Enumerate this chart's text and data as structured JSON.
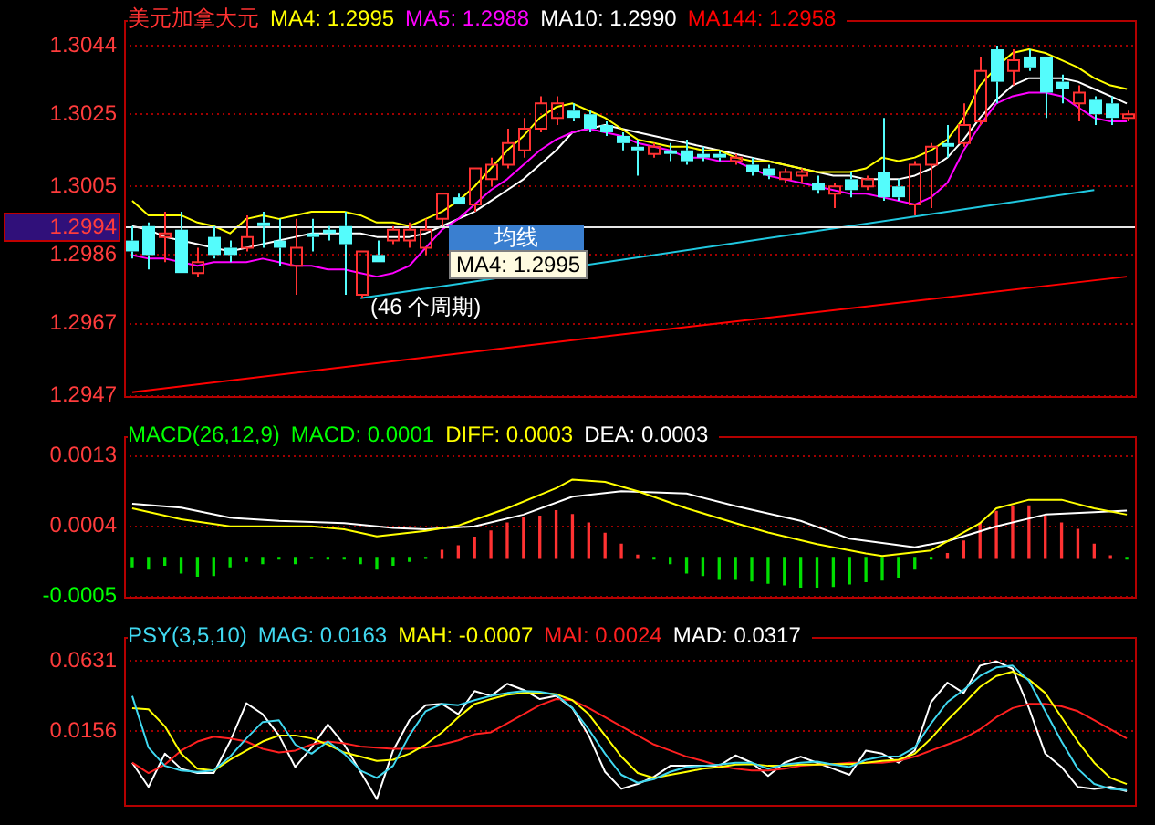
{
  "chart_data": [
    {
      "type": "candlestick",
      "title": "美元加拿大元",
      "categories": [
        null,
        null,
        null,
        null,
        null,
        null,
        null,
        null,
        null,
        null,
        null,
        null,
        null,
        null,
        null,
        null,
        null,
        null,
        null,
        null,
        null,
        null,
        null,
        null,
        null,
        null,
        null,
        null,
        null,
        null,
        null,
        null,
        null,
        null,
        null,
        null,
        null,
        null,
        null,
        null,
        null,
        null,
        null,
        null,
        null,
        null,
        null,
        null,
        null,
        null,
        null,
        null,
        null,
        null,
        null,
        null,
        null,
        null,
        null,
        null,
        null,
        null
      ],
      "ohlc": [
        [
          1.299,
          1.2994,
          1.2985,
          1.2987
        ],
        [
          1.2994,
          1.2995,
          1.2982,
          1.2986
        ],
        [
          1.2991,
          1.2998,
          1.2984,
          1.2992
        ],
        [
          1.2993,
          1.2998,
          1.2981,
          1.2981
        ],
        [
          1.2981,
          1.2988,
          1.298,
          1.2984
        ],
        [
          1.2991,
          1.2994,
          1.2985,
          1.2986
        ],
        [
          1.2988,
          1.299,
          1.2984,
          1.2986
        ],
        [
          1.2988,
          1.2997,
          1.2987,
          1.2991
        ],
        [
          1.2995,
          1.2998,
          1.2988,
          1.2994
        ],
        [
          1.299,
          1.2996,
          1.2983,
          1.2988
        ],
        [
          1.2983,
          1.2996,
          1.2975,
          1.2988
        ],
        [
          1.2992,
          1.2996,
          1.2987,
          1.2991
        ],
        [
          1.2993,
          1.2994,
          1.299,
          1.2992
        ],
        [
          1.2994,
          1.2998,
          1.2975,
          1.2989
        ],
        [
          1.2975,
          1.2987,
          1.2974,
          1.2987
        ],
        [
          1.2986,
          1.299,
          1.2984,
          1.2984
        ],
        [
          1.299,
          1.2994,
          1.2989,
          1.2993
        ],
        [
          1.299,
          1.2995,
          1.2988,
          1.2993
        ],
        [
          1.2988,
          1.2996,
          1.2986,
          1.2993
        ],
        [
          1.2996,
          1.3003,
          1.2994,
          1.3003
        ],
        [
          1.3002,
          1.3003,
          1.3,
          1.3
        ],
        [
          1.3,
          1.301,
          1.2998,
          1.301
        ],
        [
          1.3007,
          1.3013,
          1.3005,
          1.3011
        ],
        [
          1.3011,
          1.3021,
          1.301,
          1.3017
        ],
        [
          1.3015,
          1.3024,
          1.3013,
          1.3021
        ],
        [
          1.3021,
          1.303,
          1.302,
          1.3028
        ],
        [
          1.3024,
          1.303,
          1.3022,
          1.3028
        ],
        [
          1.3026,
          1.3028,
          1.3023,
          1.3024
        ],
        [
          1.3025,
          1.3026,
          1.302,
          1.3021
        ],
        [
          1.3022,
          1.3023,
          1.3019,
          1.302
        ],
        [
          1.3019,
          1.302,
          1.3015,
          1.3017
        ],
        [
          1.3016,
          1.3018,
          1.3008,
          1.3015
        ],
        [
          1.3014,
          1.3017,
          1.3013,
          1.3016
        ],
        [
          1.3015,
          1.3017,
          1.3012,
          1.3014
        ],
        [
          1.3015,
          1.3018,
          1.3011,
          1.3012
        ],
        [
          1.3014,
          1.3016,
          1.3012,
          1.3013
        ],
        [
          1.3014,
          1.3015,
          1.3012,
          1.3013
        ],
        [
          1.3012,
          1.3014,
          1.3011,
          1.3013
        ],
        [
          1.3011,
          1.3013,
          1.3008,
          1.3009
        ],
        [
          1.301,
          1.3011,
          1.3007,
          1.3008
        ],
        [
          1.3007,
          1.301,
          1.3006,
          1.3009
        ],
        [
          1.3008,
          1.301,
          1.3006,
          1.3009
        ],
        [
          1.3006,
          1.3008,
          1.3003,
          1.3004
        ],
        [
          1.3003,
          1.3006,
          1.2999,
          1.3005
        ],
        [
          1.3007,
          1.3009,
          1.3002,
          1.3004
        ],
        [
          1.3005,
          1.3008,
          1.3004,
          1.3007
        ],
        [
          1.3009,
          1.3024,
          1.3001,
          1.3002
        ],
        [
          1.3005,
          1.3007,
          1.3001,
          1.3002
        ],
        [
          1.3,
          1.3012,
          1.2997,
          1.3011
        ],
        [
          1.3011,
          1.3017,
          1.2999,
          1.3016
        ],
        [
          1.3017,
          1.3022,
          1.3013,
          1.3016
        ],
        [
          1.3017,
          1.3028,
          1.3016,
          1.3022
        ],
        [
          1.3023,
          1.3041,
          1.3022,
          1.3037
        ],
        [
          1.3043,
          1.3044,
          1.3028,
          1.3034
        ],
        [
          1.3037,
          1.3043,
          1.3033,
          1.304
        ],
        [
          1.3041,
          1.3043,
          1.3037,
          1.3038
        ],
        [
          1.3041,
          1.3041,
          1.3024,
          1.3031
        ],
        [
          1.3034,
          1.3036,
          1.3028,
          1.3032
        ],
        [
          1.3028,
          1.3033,
          1.3023,
          1.3031
        ],
        [
          1.3029,
          1.303,
          1.3022,
          1.3025
        ],
        [
          1.3028,
          1.303,
          1.3022,
          1.3024
        ],
        [
          1.3024,
          1.3026,
          1.3023,
          1.3025
        ]
      ],
      "colors": [
        "#54fcfc",
        "#54fcfc",
        "#ff3232",
        "#54fcfc",
        "#ff3232",
        "#54fcfc",
        "#54fcfc",
        "#ff3232",
        "#54fcfc",
        "#54fcfc",
        "#ff3232",
        "#54fcfc",
        "#54fcfc",
        "#54fcfc",
        "#ff3232",
        "#54fcfc",
        "#ff3232",
        "#ff3232",
        "#ff3232",
        "#ff3232",
        "#54fcfc",
        "#ff3232",
        "#ff3232",
        "#ff3232",
        "#ff3232",
        "#ff3232",
        "#ff3232",
        "#54fcfc",
        "#54fcfc",
        "#54fcfc",
        "#54fcfc",
        "#54fcfc",
        "#ff3232",
        "#54fcfc",
        "#54fcfc",
        "#54fcfc",
        "#54fcfc",
        "#ff3232",
        "#54fcfc",
        "#54fcfc",
        "#ff3232",
        "#ff3232",
        "#54fcfc",
        "#ff3232",
        "#54fcfc",
        "#ff3232",
        "#54fcfc",
        "#54fcfc",
        "#ff3232",
        "#ff3232",
        "#54fcfc",
        "#ff3232",
        "#ff3232",
        "#54fcfc",
        "#ff3232",
        "#54fcfc",
        "#54fcfc",
        "#54fcfc",
        "#ff3232",
        "#54fcfc",
        "#54fcfc",
        "#ff3232"
      ],
      "series": [
        {
          "type": "line",
          "name": "MA4: 1.2995",
          "color": "#ffff00",
          "values": [
            1.3001,
            1.2997,
            1.2997,
            1.2997,
            1.2995,
            1.2994,
            1.2992,
            1.2996,
            1.2997,
            1.2996,
            1.2997,
            1.2998,
            1.2998,
            1.2998,
            1.2997,
            1.2995,
            1.2995,
            1.2994,
            1.2996,
            1.2998,
            1.3001,
            1.3005,
            1.301,
            1.3015,
            1.3019,
            1.3024,
            1.3027,
            1.3028,
            1.3026,
            1.3024,
            1.3021,
            1.3018,
            1.3017,
            1.3016,
            1.3016,
            1.3015,
            1.3015,
            1.3013,
            1.3012,
            1.3012,
            1.3011,
            1.301,
            1.3009,
            1.3009,
            1.3009,
            1.301,
            1.3013,
            1.3012,
            1.3013,
            1.3015,
            1.3018,
            1.3024,
            1.3033,
            1.3038,
            1.3042,
            1.3043,
            1.3042,
            1.304,
            1.3038,
            1.3035,
            1.3033,
            1.3032
          ]
        },
        {
          "type": "line",
          "name": "MA5: 1.2988",
          "color": "#ff00ff",
          "values": [
            1.2986,
            1.2985,
            1.2985,
            1.2984,
            1.2983,
            1.2984,
            1.2984,
            1.2984,
            1.2985,
            1.2984,
            1.2983,
            1.2983,
            1.2982,
            1.2982,
            1.2981,
            1.298,
            1.2981,
            1.2983,
            1.2988,
            1.2993,
            1.2996,
            1.3,
            1.3004,
            1.3007,
            1.3011,
            1.3015,
            1.3018,
            1.302,
            1.3021,
            1.302,
            1.3019,
            1.3017,
            1.3016,
            1.3015,
            1.3013,
            1.3013,
            1.3012,
            1.3012,
            1.301,
            1.3008,
            1.3007,
            1.3006,
            1.3005,
            1.3004,
            1.3003,
            1.3003,
            1.3002,
            1.3001,
            1.3,
            1.3002,
            1.3006,
            1.3015,
            1.3022,
            1.3028,
            1.303,
            1.3031,
            1.3031,
            1.303,
            1.3027,
            1.3024,
            1.3023,
            1.3023
          ]
        },
        {
          "type": "line",
          "name": "MA10: 1.2990",
          "color": "#ffffff",
          "values": [
            1.2994,
            1.2993,
            1.2991,
            1.299,
            1.2989,
            1.2988,
            1.2987,
            1.2988,
            1.2989,
            1.299,
            1.2991,
            1.2992,
            1.2992,
            1.2992,
            1.2992,
            1.2991,
            1.2991,
            1.2991,
            1.2992,
            1.2994,
            1.2996,
            1.2998,
            1.3001,
            1.3004,
            1.3007,
            1.3011,
            1.3015,
            1.302,
            1.3021,
            1.3022,
            1.3021,
            1.302,
            1.3019,
            1.3018,
            1.3017,
            1.3016,
            1.3015,
            1.3014,
            1.3013,
            1.3012,
            1.3011,
            1.301,
            1.3009,
            1.3008,
            1.3008,
            1.3007,
            1.3007,
            1.3007,
            1.3008,
            1.301,
            1.3013,
            1.3018,
            1.3024,
            1.3029,
            1.3033,
            1.3035,
            1.3035,
            1.3035,
            1.3034,
            1.3032,
            1.303,
            1.3028
          ]
        },
        {
          "type": "line",
          "name": "MA144: 1.2958",
          "color": "#ff0000",
          "values": [
            1.2948,
            null,
            null,
            null,
            null,
            null,
            null,
            null,
            null,
            null,
            null,
            null,
            null,
            null,
            null,
            null,
            null,
            null,
            null,
            null,
            null,
            null,
            null,
            null,
            null,
            null,
            null,
            null,
            null,
            null,
            1.2964,
            null,
            null,
            null,
            null,
            null,
            null,
            null,
            null,
            null,
            null,
            null,
            null,
            null,
            null,
            null,
            null,
            null,
            null,
            null,
            null,
            null,
            null,
            null,
            null,
            null,
            null,
            null,
            null,
            null,
            null,
            1.298
          ]
        },
        {
          "type": "line",
          "color": "#20c8e0",
          "values": [
            null,
            null,
            null,
            null,
            null,
            null,
            null,
            null,
            null,
            null,
            null,
            null,
            null,
            null,
            1.2974,
            null,
            null,
            null,
            null,
            null,
            null,
            null,
            null,
            null,
            null,
            null,
            null,
            null,
            null,
            null,
            null,
            null,
            null,
            null,
            null,
            null,
            null,
            null,
            null,
            null,
            null,
            null,
            null,
            null,
            null,
            null,
            null,
            null,
            null,
            null,
            null,
            null,
            null,
            null,
            null,
            null,
            null,
            null,
            null,
            1.3004,
            null,
            null
          ]
        }
      ],
      "ylim": [
        1.2947,
        1.3051
      ],
      "yticks": [
        1.2947,
        1.2967,
        1.2986,
        1.3005,
        1.3025,
        1.3044
      ],
      "grid": "y",
      "legend": "top left",
      "tick_labels": "y",
      "ref_lines": [
        {
          "axis": "y",
          "value": 1.2994,
          "label": "1.2994",
          "color": "#e6e6e6"
        }
      ],
      "annotations": [
        "(46 个周期)",
        "均线",
        "MA4: 1.2995"
      ]
    },
    {
      "type": "bar",
      "title": "MACD(26,12,9)",
      "categories": [
        null,
        null,
        null,
        null,
        null,
        null,
        null,
        null,
        null,
        null,
        null,
        null,
        null,
        null,
        null,
        null,
        null,
        null,
        null,
        null,
        null,
        null,
        null,
        null,
        null,
        null,
        null,
        null,
        null,
        null,
        null,
        null,
        null,
        null,
        null,
        null,
        null,
        null,
        null,
        null,
        null,
        null,
        null,
        null,
        null,
        null,
        null,
        null,
        null,
        null,
        null,
        null,
        null,
        null,
        null,
        null,
        null,
        null,
        null,
        null,
        null,
        null
      ],
      "series": [
        {
          "type": "bar",
          "name": "MACD: 0.0001",
          "color": "#00ff00",
          "values": [
            -0.00012,
            -0.00015,
            -0.0001,
            -0.0002,
            -0.00024,
            -0.00023,
            -0.00012,
            -5e-05,
            -8e-05,
            -2e-05,
            -8e-05,
            0,
            -2e-05,
            -2e-05,
            -8e-05,
            -0.00015,
            -0.0001,
            -5e-05,
            0,
            9e-05,
            0.00015,
            0.00026,
            0.00034,
            0.00044,
            0.00051,
            0.00053,
            0.0006,
            0.00055,
            0.00044,
            0.00031,
            0.00017,
            3e-05,
            -2e-05,
            -8e-05,
            -0.0002,
            -0.00023,
            -0.00027,
            -0.00027,
            -0.0003,
            -0.00033,
            -0.00035,
            -0.00038,
            -0.00038,
            -0.00037,
            -0.00034,
            -0.00031,
            -0.00029,
            -0.00025,
            -0.00015,
            -2e-05,
            5e-05,
            0.00021,
            0.00044,
            0.00059,
            0.00066,
            0.00066,
            0.00053,
            0.00044,
            0.00036,
            0.00017,
            2e-05,
            -2e-05
          ],
          "colors": [
            "#00e000",
            "#00e000",
            "#00e000",
            "#00e000",
            "#00e000",
            "#00e000",
            "#00e000",
            "#00e000",
            "#00e000",
            "#00e000",
            "#00e000",
            "#00e000",
            "#00e000",
            "#00e000",
            "#00e000",
            "#00e000",
            "#00e000",
            "#00e000",
            "#00e000",
            "#ff3232",
            "#ff3232",
            "#ff3232",
            "#ff3232",
            "#ff3232",
            "#ff3232",
            "#ff3232",
            "#ff3232",
            "#ff3232",
            "#ff3232",
            "#ff3232",
            "#ff3232",
            "#ff3232",
            "#00e000",
            "#00e000",
            "#00e000",
            "#00e000",
            "#00e000",
            "#00e000",
            "#00e000",
            "#00e000",
            "#00e000",
            "#00e000",
            "#00e000",
            "#00e000",
            "#00e000",
            "#00e000",
            "#00e000",
            "#00e000",
            "#00e000",
            "#00e000",
            "#ff3232",
            "#ff3232",
            "#ff3232",
            "#ff3232",
            "#ff3232",
            "#ff3232",
            "#ff3232",
            "#ff3232",
            "#ff3232",
            "#ff3232",
            "#ff3232",
            "#00e000"
          ]
        },
        {
          "type": "line",
          "name": "DIFF: 0.0003",
          "color": "#ffff00",
          "values": [
            0.00063,
            null,
            null,
            0.00049,
            null,
            null,
            0.0004,
            null,
            null,
            null,
            null,
            0.0004,
            null,
            0.00036,
            null,
            0.00027,
            null,
            null,
            0.00034,
            null,
            0.00041,
            null,
            null,
            0.00063,
            null,
            null,
            0.00089,
            0.001,
            null,
            0.00097,
            null,
            0.00085,
            null,
            null,
            0.00063,
            null,
            null,
            0.00044,
            null,
            0.00032,
            null,
            null,
            0.00017,
            null,
            null,
            5e-05,
            2e-05,
            null,
            null,
            9e-05,
            null,
            null,
            0.00044,
            0.00063,
            null,
            0.00074,
            null,
            0.00074,
            null,
            0.00063,
            null,
            0.00055
          ]
        },
        {
          "type": "line",
          "name": "DEA: 0.0003",
          "color": "#ffffff",
          "values": [
            0.00069,
            null,
            null,
            0.00064,
            null,
            null,
            0.00051,
            null,
            null,
            0.00047,
            null,
            null,
            null,
            0.00044,
            null,
            null,
            0.00038,
            null,
            0.00036,
            null,
            null,
            0.0004,
            null,
            null,
            0.00055,
            null,
            null,
            0.00078,
            null,
            null,
            0.00085,
            null,
            null,
            null,
            0.00082,
            null,
            null,
            0.00066,
            null,
            null,
            null,
            0.00047,
            null,
            null,
            0.00024,
            null,
            null,
            null,
            0.00013,
            null,
            0.00021,
            null,
            null,
            0.0004,
            null,
            null,
            0.00055,
            null,
            null,
            0.00058,
            null,
            0.0006
          ]
        }
      ],
      "ylim": [
        -0.0005,
        0.00155
      ],
      "yticks": [
        -0.0005,
        0.0004,
        0.0013
      ],
      "grid": "y",
      "legend": "top left",
      "tick_labels": "y"
    },
    {
      "type": "line",
      "title": "PSY(3,5,10)",
      "categories": [
        null,
        null,
        null,
        null,
        null,
        null,
        null,
        null,
        null,
        null,
        null,
        null,
        null,
        null,
        null,
        null,
        null,
        null,
        null,
        null,
        null,
        null,
        null,
        null,
        null,
        null,
        null,
        null,
        null,
        null,
        null,
        null,
        null,
        null,
        null,
        null,
        null,
        null,
        null,
        null,
        null,
        null,
        null,
        null,
        null,
        null,
        null,
        null,
        null,
        null,
        null,
        null,
        null,
        null,
        null,
        null,
        null,
        null,
        null,
        null,
        null,
        null
      ],
      "series": [
        {
          "name": "MAG: 0.0163",
          "color": "#40d8f0",
          "values": [
            0.0394,
            0.0045,
            -0.0078,
            -0.011,
            -0.0119,
            -0.011,
            -0.0016,
            0.0107,
            0.0218,
            0.023,
            0.0066,
            0.0004,
            0.0086,
            0.0004,
            -0.011,
            -0.016,
            -0.0078,
            0.0127,
            0.0291,
            0.034,
            0.0332,
            0.0365,
            0.0394,
            0.0414,
            0.0427,
            0.0423,
            0.0402,
            0.0312,
            0.0168,
            0.0004,
            -0.0139,
            -0.0193,
            -0.0168,
            -0.0119,
            -0.0086,
            -0.0078,
            -0.007,
            -0.0057,
            -0.0057,
            -0.0098,
            -0.007,
            -0.0057,
            -0.0049,
            -0.007,
            -0.0086,
            -0.0037,
            -0.0016,
            -0.0016,
            0.0045,
            0.0209,
            0.0353,
            0.0435,
            0.0529,
            0.0587,
            0.0599,
            0.0496,
            0.0291,
            0.0086,
            -0.0098,
            -0.0201,
            -0.0234,
            -0.0242
          ]
        },
        {
          "name": "MAH: -0.0007",
          "color": "#ffff00",
          "values": [
            0.0312,
            0.0304,
            0.0189,
            0.0004,
            -0.0098,
            -0.011,
            -0.0037,
            0.0025,
            0.0086,
            0.0127,
            0.0127,
            0.0107,
            0.0066,
            0.0012,
            -0.0016,
            -0.0045,
            -0.0037,
            0.0004,
            0.0066,
            0.0148,
            0.025,
            0.034,
            0.0373,
            0.0402,
            0.0414,
            0.0414,
            0.0406,
            0.0365,
            0.0271,
            0.0127,
            -0.0016,
            -0.0127,
            -0.016,
            -0.0139,
            -0.0119,
            -0.0098,
            -0.0086,
            -0.007,
            -0.0066,
            -0.0078,
            -0.0078,
            -0.007,
            -0.007,
            -0.0066,
            -0.0066,
            -0.0057,
            -0.0045,
            -0.0037,
            0.0004,
            0.0107,
            0.023,
            0.034,
            0.0455,
            0.0529,
            0.0558,
            0.0505,
            0.0414,
            0.025,
            0.0086,
            -0.0057,
            -0.016,
            -0.0201
          ]
        },
        {
          "name": "MAI: 0.0024",
          "color": "#ff2020",
          "values": [
            -0.0057,
            -0.0127,
            -0.007,
            0.0025,
            0.0086,
            0.0119,
            0.0107,
            0.0086,
            0.0037,
            0.0012,
            0.0025,
            0.0066,
            0.0086,
            0.0074,
            0.0053,
            0.0045,
            0.0037,
            0.0037,
            0.0045,
            0.0066,
            0.0094,
            0.0135,
            0.0148,
            0.0209,
            0.0271,
            0.0332,
            0.0373,
            0.0365,
            0.0312,
            0.025,
            0.0189,
            0.0127,
            0.0066,
            0.0025,
            -0.0016,
            -0.0045,
            -0.0078,
            -0.0098,
            -0.011,
            -0.011,
            -0.0098,
            -0.0078,
            -0.007,
            -0.0066,
            -0.0057,
            -0.0057,
            -0.0057,
            -0.0045,
            -0.0016,
            0.0025,
            0.0066,
            0.0107,
            0.0168,
            0.025,
            0.0312,
            0.034,
            0.034,
            0.0324,
            0.0291,
            0.023,
            0.0168,
            0.0107
          ]
        },
        {
          "name": "MAD: 0.0317",
          "color": "#ffffff",
          "values": [
            -0.0057,
            -0.0221,
            0.0004,
            -0.0098,
            -0.0127,
            -0.0127,
            0.0086,
            0.0345,
            0.0271,
            0.0127,
            -0.0086,
            0.0045,
            0.0201,
            0.0066,
            -0.0119,
            -0.0303,
            0.0025,
            0.023,
            0.0332,
            0.034,
            0.0271,
            0.0427,
            0.0394,
            0.0476,
            0.0435,
            0.0373,
            0.0394,
            0.0312,
            0.0127,
            -0.0119,
            -0.0234,
            -0.0201,
            -0.0152,
            -0.0078,
            -0.0078,
            -0.0078,
            -0.0078,
            -0.0008,
            -0.0057,
            -0.0147,
            -0.0057,
            -0.0016,
            -0.0057,
            -0.0098,
            -0.0139,
            0.0025,
            0.0004,
            -0.0057,
            0.0025,
            0.0353,
            0.0484,
            0.0414,
            0.0599,
            0.0628,
            0.0578,
            0.0312,
            0.0004,
            -0.0086,
            -0.0221,
            -0.0234,
            -0.0221,
            -0.025
          ]
        }
      ],
      "ylim": [
        -0.034,
        0.079
      ],
      "yticks": [
        0.0156,
        0.0631
      ],
      "grid": "y",
      "legend": "top left",
      "tick_labels": "y"
    }
  ]
}
